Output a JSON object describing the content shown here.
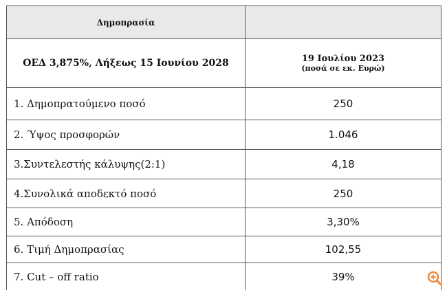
{
  "header": {
    "title": "Δημοπρασία"
  },
  "subheader": {
    "left": "ΟΕΔ 3,875%, Λήξεως 15 Ιουνίου 2028",
    "right_date": "19 Ιουλίου 2023",
    "right_note": "(ποσά σε εκ. Ευρώ)"
  },
  "table": {
    "rows": [
      [
        "1. Δημοπρατούμενο ποσό",
        "250"
      ],
      [
        "2. Ύψος προσφορών",
        "1.046"
      ],
      [
        "3.Συντελεστής κάλυψης(2:1)",
        "4,18"
      ],
      [
        "4.Συνολικά αποδεκτό ποσό",
        "250"
      ],
      [
        "5. Απόδοση",
        "3,30%"
      ],
      [
        "6. Τιμή Δημοπρασίας",
        "102,55"
      ],
      [
        "7. Cut – off ratio",
        "39%"
      ]
    ]
  }
}
